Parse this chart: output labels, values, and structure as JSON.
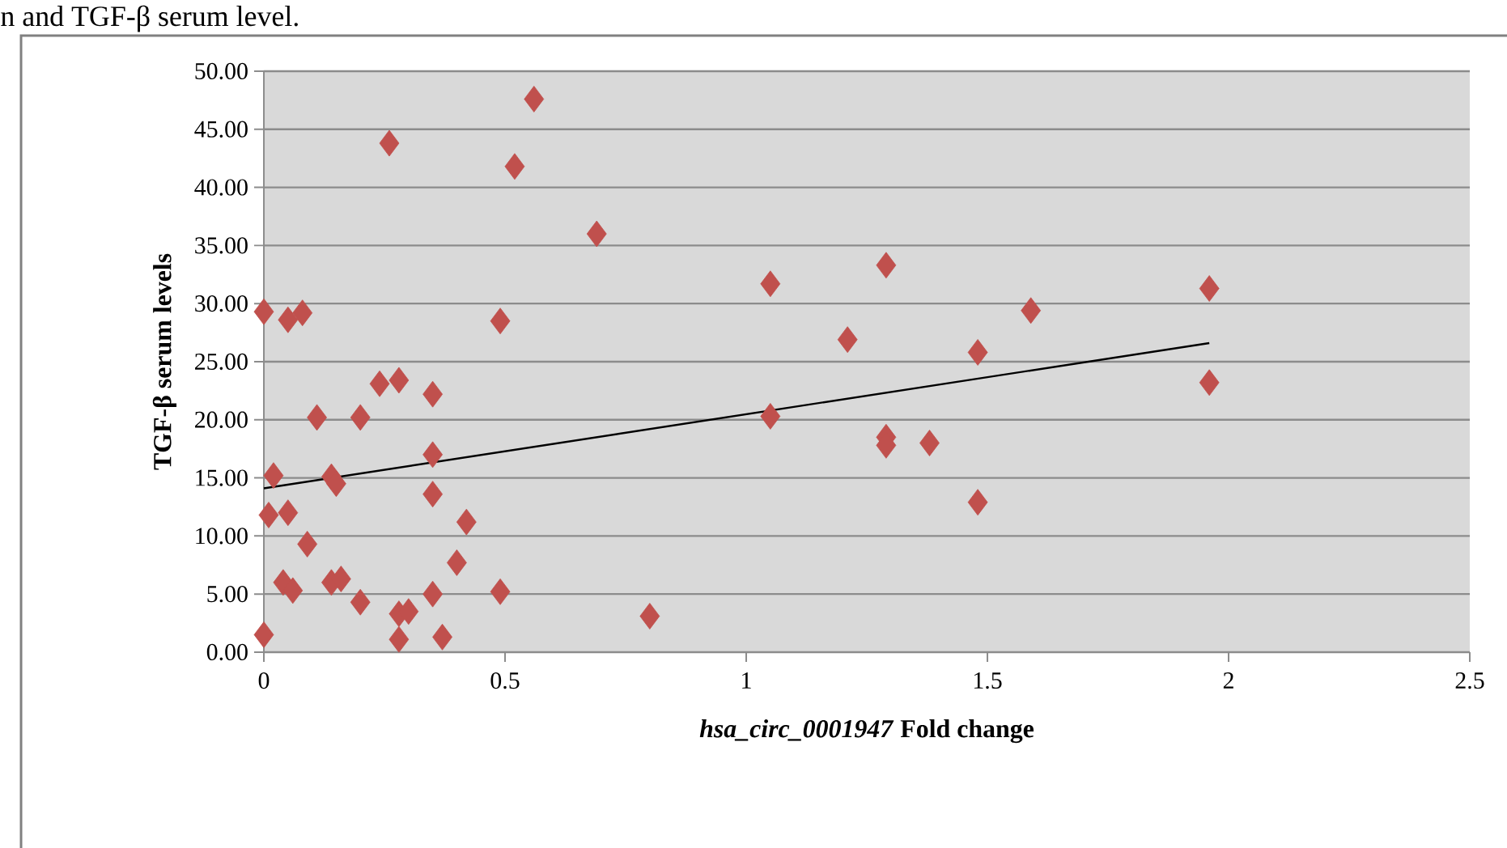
{
  "chart_data": {
    "type": "scatter",
    "xlabel": "*hsa_circ_0001947* Fold change",
    "ylabel": "TGF-β serum levels",
    "annotations": [
      "n and TGF-β serum level."
    ],
    "xlim": [
      0,
      2.5
    ],
    "xticks": [
      0,
      0.5,
      1,
      1.5,
      2,
      2.5
    ],
    "ylim": [
      0,
      50
    ],
    "yticks": [
      {
        "value": 0,
        "label": "0.00"
      },
      {
        "value": 5,
        "label": "5.00"
      },
      {
        "value": 10,
        "label": "10.00"
      },
      {
        "value": 15,
        "label": "15.00"
      },
      {
        "value": 20,
        "label": "20.00"
      },
      {
        "value": 25,
        "label": "25.00"
      },
      {
        "value": 30,
        "label": "30.00"
      },
      {
        "value": 35,
        "label": "35.00"
      },
      {
        "value": 40,
        "label": "40.00"
      },
      {
        "value": 45,
        "label": "45.00"
      },
      {
        "value": 50,
        "label": "50.00"
      }
    ],
    "grid": "y",
    "series": [
      {
        "marker": "diamond",
        "color": "#c0504d",
        "x": [
          0,
          0,
          0.01,
          0.02,
          0.05,
          0.05,
          0.08,
          0.04,
          0.06,
          0.09,
          0.11,
          0.14,
          0.16,
          0.14,
          0.15,
          0.2,
          0.2,
          0.24,
          0.26,
          0.28,
          0.28,
          0.28,
          0.3,
          0.35,
          0.35,
          0.35,
          0.35,
          0.37,
          0.4,
          0.42,
          0.49,
          0.49,
          0.52,
          0.56,
          0.69,
          0.8,
          1.05,
          1.05,
          1.21,
          1.29,
          1.29,
          1.29,
          1.38,
          1.48,
          1.48,
          1.59,
          1.96,
          1.96
        ],
        "values": [
          1.5,
          29.3,
          11.8,
          15.2,
          28.6,
          12.0,
          29.2,
          6.0,
          5.3,
          9.3,
          20.2,
          6.0,
          6.3,
          15.1,
          14.5,
          4.3,
          20.2,
          23.1,
          43.8,
          23.4,
          3.3,
          1.1,
          3.5,
          22.2,
          17.0,
          13.6,
          5.0,
          1.3,
          7.7,
          11.2,
          28.5,
          5.2,
          41.8,
          47.6,
          36.0,
          3.1,
          31.7,
          20.3,
          26.9,
          33.3,
          18.5,
          17.8,
          18.0,
          25.8,
          12.9,
          29.4,
          31.3,
          23.2
        ]
      },
      {
        "type": "line",
        "marker": "none",
        "color": "#000000",
        "x": [
          0,
          1.96
        ],
        "values": [
          14.1,
          26.6
        ]
      }
    ]
  }
}
